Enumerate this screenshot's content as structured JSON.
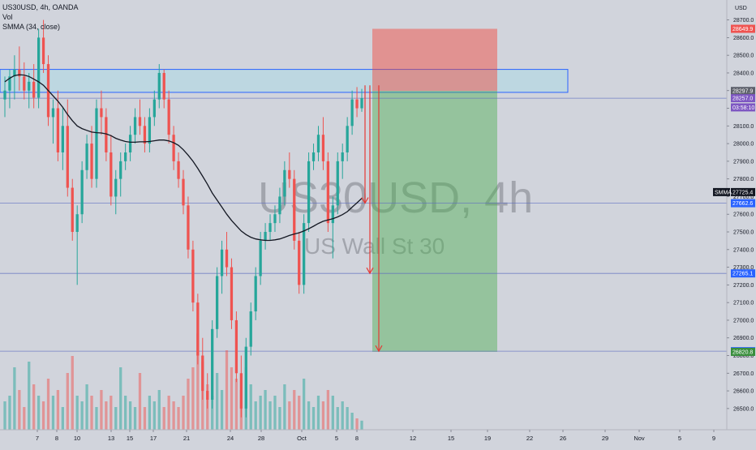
{
  "watermark": {
    "symbol": "US30USD, 4h",
    "description": "US Wall St 30"
  },
  "chart_data": {
    "type": "candlestick",
    "currency": "USD",
    "header": {
      "symbol_line": "US30USD, 4h, OANDA",
      "vol_label": "Vol",
      "smma_label": "SMMA (34, close)"
    },
    "y_range": [
      26380,
      28790
    ],
    "y_ticks": [
      "28700.0",
      "28600.0",
      "28500.0",
      "28400.0",
      "28300.0",
      "28200.0",
      "28100.0",
      "28000.0",
      "27900.0",
      "27800.0",
      "27700.0",
      "27600.0",
      "27500.0",
      "27400.0",
      "27300.0",
      "27200.0",
      "27100.0",
      "27000.0",
      "26900.0",
      "26800.0",
      "26700.0",
      "26600.0",
      "26500.0"
    ],
    "x_labels": [
      "7",
      "8",
      "10",
      "13",
      "15",
      "17",
      "21",
      "24",
      "28",
      "Oct",
      "5",
      "8",
      "12",
      "15",
      "19",
      "22",
      "26",
      "29",
      "Nov",
      "5",
      "9"
    ],
    "price_badges": [
      {
        "label": "28649.9",
        "price": 28649.9,
        "color": "#ef5350"
      },
      {
        "label": "28297.9",
        "price": 28297.9,
        "color": "#5d606b"
      },
      {
        "label": "28257.0",
        "price": 28257.0,
        "color": "#7e57c2"
      },
      {
        "label": "03:58:10",
        "price": 28205.0,
        "color": "#7e57c2"
      },
      {
        "label": "27725.4",
        "price": 27725.4,
        "color": "#131722"
      },
      {
        "label": "27662.6",
        "price": 27662.6,
        "color": "#2962ff"
      },
      {
        "label": "27265.1",
        "price": 27265.1,
        "color": "#2962ff"
      },
      {
        "label": "26824.7",
        "price": 26824.7,
        "color": "#2962ff"
      },
      {
        "label": "26820.8",
        "price": 26820.8,
        "color": "#388e3c"
      }
    ],
    "smma_badge": "SMMA",
    "horizontal_lines": [
      28257.0,
      27662.6,
      27265.1,
      26824.7
    ],
    "resistance_zone": {
      "from_price": 28290,
      "to_price": 28420
    },
    "short_position": {
      "stop": 28649.9,
      "entry": 28297.9,
      "target": 26820.8
    },
    "candles": [
      [
        28250,
        28380,
        28150,
        28300
      ],
      [
        28300,
        28420,
        28200,
        28380
      ],
      [
        28380,
        28500,
        28250,
        28420
      ],
      [
        28420,
        28550,
        28300,
        28380
      ],
      [
        28380,
        28460,
        28250,
        28300
      ],
      [
        28300,
        28400,
        28200,
        28350
      ],
      [
        28350,
        28450,
        28200,
        28260
      ],
      [
        28260,
        28650,
        28200,
        28600
      ],
      [
        28600,
        28700,
        28400,
        28450
      ],
      [
        28450,
        28500,
        28100,
        28150
      ],
      [
        28150,
        28250,
        28000,
        28200
      ],
      [
        28200,
        28300,
        27900,
        27950
      ],
      [
        27950,
        28200,
        27850,
        28100
      ],
      [
        28100,
        28250,
        27700,
        27750
      ],
      [
        27750,
        27800,
        27450,
        27500
      ],
      [
        27500,
        27650,
        27200,
        27600
      ],
      [
        27600,
        27900,
        27550,
        27850
      ],
      [
        27850,
        28050,
        27800,
        28000
      ],
      [
        28000,
        28100,
        27750,
        27800
      ],
      [
        27800,
        28250,
        27750,
        28200
      ],
      [
        28200,
        28300,
        28050,
        28150
      ],
      [
        28150,
        28200,
        27900,
        27950
      ],
      [
        27950,
        28050,
        27650,
        27700
      ],
      [
        27700,
        27850,
        27600,
        27800
      ],
      [
        27800,
        27950,
        27700,
        27900
      ],
      [
        27900,
        28000,
        27850,
        27950
      ],
      [
        27950,
        28100,
        27900,
        28050
      ],
      [
        28050,
        28200,
        28000,
        28150
      ],
      [
        28150,
        28250,
        28050,
        28100
      ],
      [
        28100,
        28150,
        27950,
        28000
      ],
      [
        28000,
        28200,
        27950,
        28150
      ],
      [
        28150,
        28300,
        28100,
        28250
      ],
      [
        28250,
        28450,
        28200,
        28400
      ],
      [
        28400,
        28420,
        28200,
        28250
      ],
      [
        28250,
        28300,
        28000,
        28050
      ],
      [
        28050,
        28100,
        27850,
        27900
      ],
      [
        27900,
        27950,
        27750,
        27800
      ],
      [
        27800,
        27850,
        27600,
        27650
      ],
      [
        27650,
        27700,
        27350,
        27400
      ],
      [
        27400,
        27450,
        27050,
        27100
      ],
      [
        27100,
        27150,
        26750,
        26800
      ],
      [
        26800,
        26900,
        26550,
        26600
      ],
      [
        26600,
        26700,
        26500,
        26550
      ],
      [
        26550,
        27000,
        26500,
        26950
      ],
      [
        26950,
        27300,
        26900,
        27250
      ],
      [
        27250,
        27450,
        27150,
        27400
      ],
      [
        27400,
        27500,
        27250,
        27300
      ],
      [
        27300,
        27350,
        26950,
        27000
      ],
      [
        27000,
        27050,
        26650,
        26700
      ],
      [
        26700,
        26800,
        26450,
        26500
      ],
      [
        26500,
        26900,
        26450,
        26850
      ],
      [
        26850,
        27100,
        26800,
        27050
      ],
      [
        27050,
        27300,
        27000,
        27250
      ],
      [
        27250,
        27500,
        27200,
        27450
      ],
      [
        27450,
        27550,
        27400,
        27500
      ],
      [
        27500,
        27600,
        27450,
        27550
      ],
      [
        27550,
        27650,
        27500,
        27600
      ],
      [
        27600,
        27750,
        27550,
        27700
      ],
      [
        27700,
        27900,
        27650,
        27850
      ],
      [
        27850,
        27950,
        27750,
        27800
      ],
      [
        27800,
        27850,
        27400,
        27450
      ],
      [
        27450,
        27500,
        27150,
        27200
      ],
      [
        27200,
        27600,
        27150,
        27550
      ],
      [
        27550,
        27950,
        27500,
        27900
      ],
      [
        27900,
        28000,
        27850,
        27950
      ],
      [
        27950,
        28100,
        27900,
        28050
      ],
      [
        28050,
        28150,
        27850,
        27900
      ],
      [
        27900,
        27950,
        27500,
        27550
      ],
      [
        27550,
        27700,
        27350,
        27650
      ],
      [
        27650,
        27950,
        27600,
        27900
      ],
      [
        27900,
        28000,
        27800,
        27950
      ],
      [
        27950,
        28150,
        27900,
        28100
      ],
      [
        28100,
        28300,
        28050,
        28250
      ],
      [
        28250,
        28320,
        28150,
        28200
      ],
      [
        28200,
        28310,
        28180,
        28257
      ]
    ],
    "volume": [
      0.25,
      0.3,
      0.55,
      0.35,
      0.2,
      0.6,
      0.4,
      0.3,
      0.25,
      0.45,
      0.3,
      0.35,
      0.2,
      0.5,
      0.65,
      0.3,
      0.25,
      0.4,
      0.3,
      0.2,
      0.35,
      0.25,
      0.3,
      0.2,
      0.55,
      0.3,
      0.25,
      0.2,
      0.5,
      0.2,
      0.3,
      0.25,
      0.35,
      0.2,
      0.3,
      0.25,
      0.2,
      0.3,
      0.45,
      0.55,
      0.85,
      0.6,
      0.4,
      0.3,
      0.5,
      0.35,
      0.7,
      0.55,
      0.45,
      0.35,
      0.55,
      0.4,
      0.25,
      0.3,
      0.35,
      0.25,
      0.3,
      0.2,
      0.4,
      0.25,
      0.35,
      0.3,
      0.45,
      0.25,
      0.2,
      0.3,
      0.25,
      0.35,
      0.3,
      0.2,
      0.25,
      0.2,
      0.15,
      0.1,
      0.08
    ],
    "smma": [
      28350,
      28370,
      28385,
      28390,
      28388,
      28380,
      28365,
      28350,
      28330,
      28300,
      28270,
      28240,
      28205,
      28165,
      28130,
      28100,
      28085,
      28075,
      28065,
      28062,
      28060,
      28055,
      28045,
      28030,
      28020,
      28012,
      28008,
      28008,
      28010,
      28010,
      28012,
      28016,
      28020,
      28020,
      28015,
      28005,
      27990,
      27965,
      27935,
      27900,
      27860,
      27815,
      27770,
      27720,
      27680,
      27640,
      27600,
      27565,
      27535,
      27505,
      27485,
      27470,
      27460,
      27455,
      27452,
      27452,
      27455,
      27460,
      27470,
      27480,
      27488,
      27495,
      27505,
      27518,
      27532,
      27548,
      27560,
      27568,
      27575,
      27585,
      27598,
      27615,
      27640,
      27665,
      27690
    ]
  }
}
